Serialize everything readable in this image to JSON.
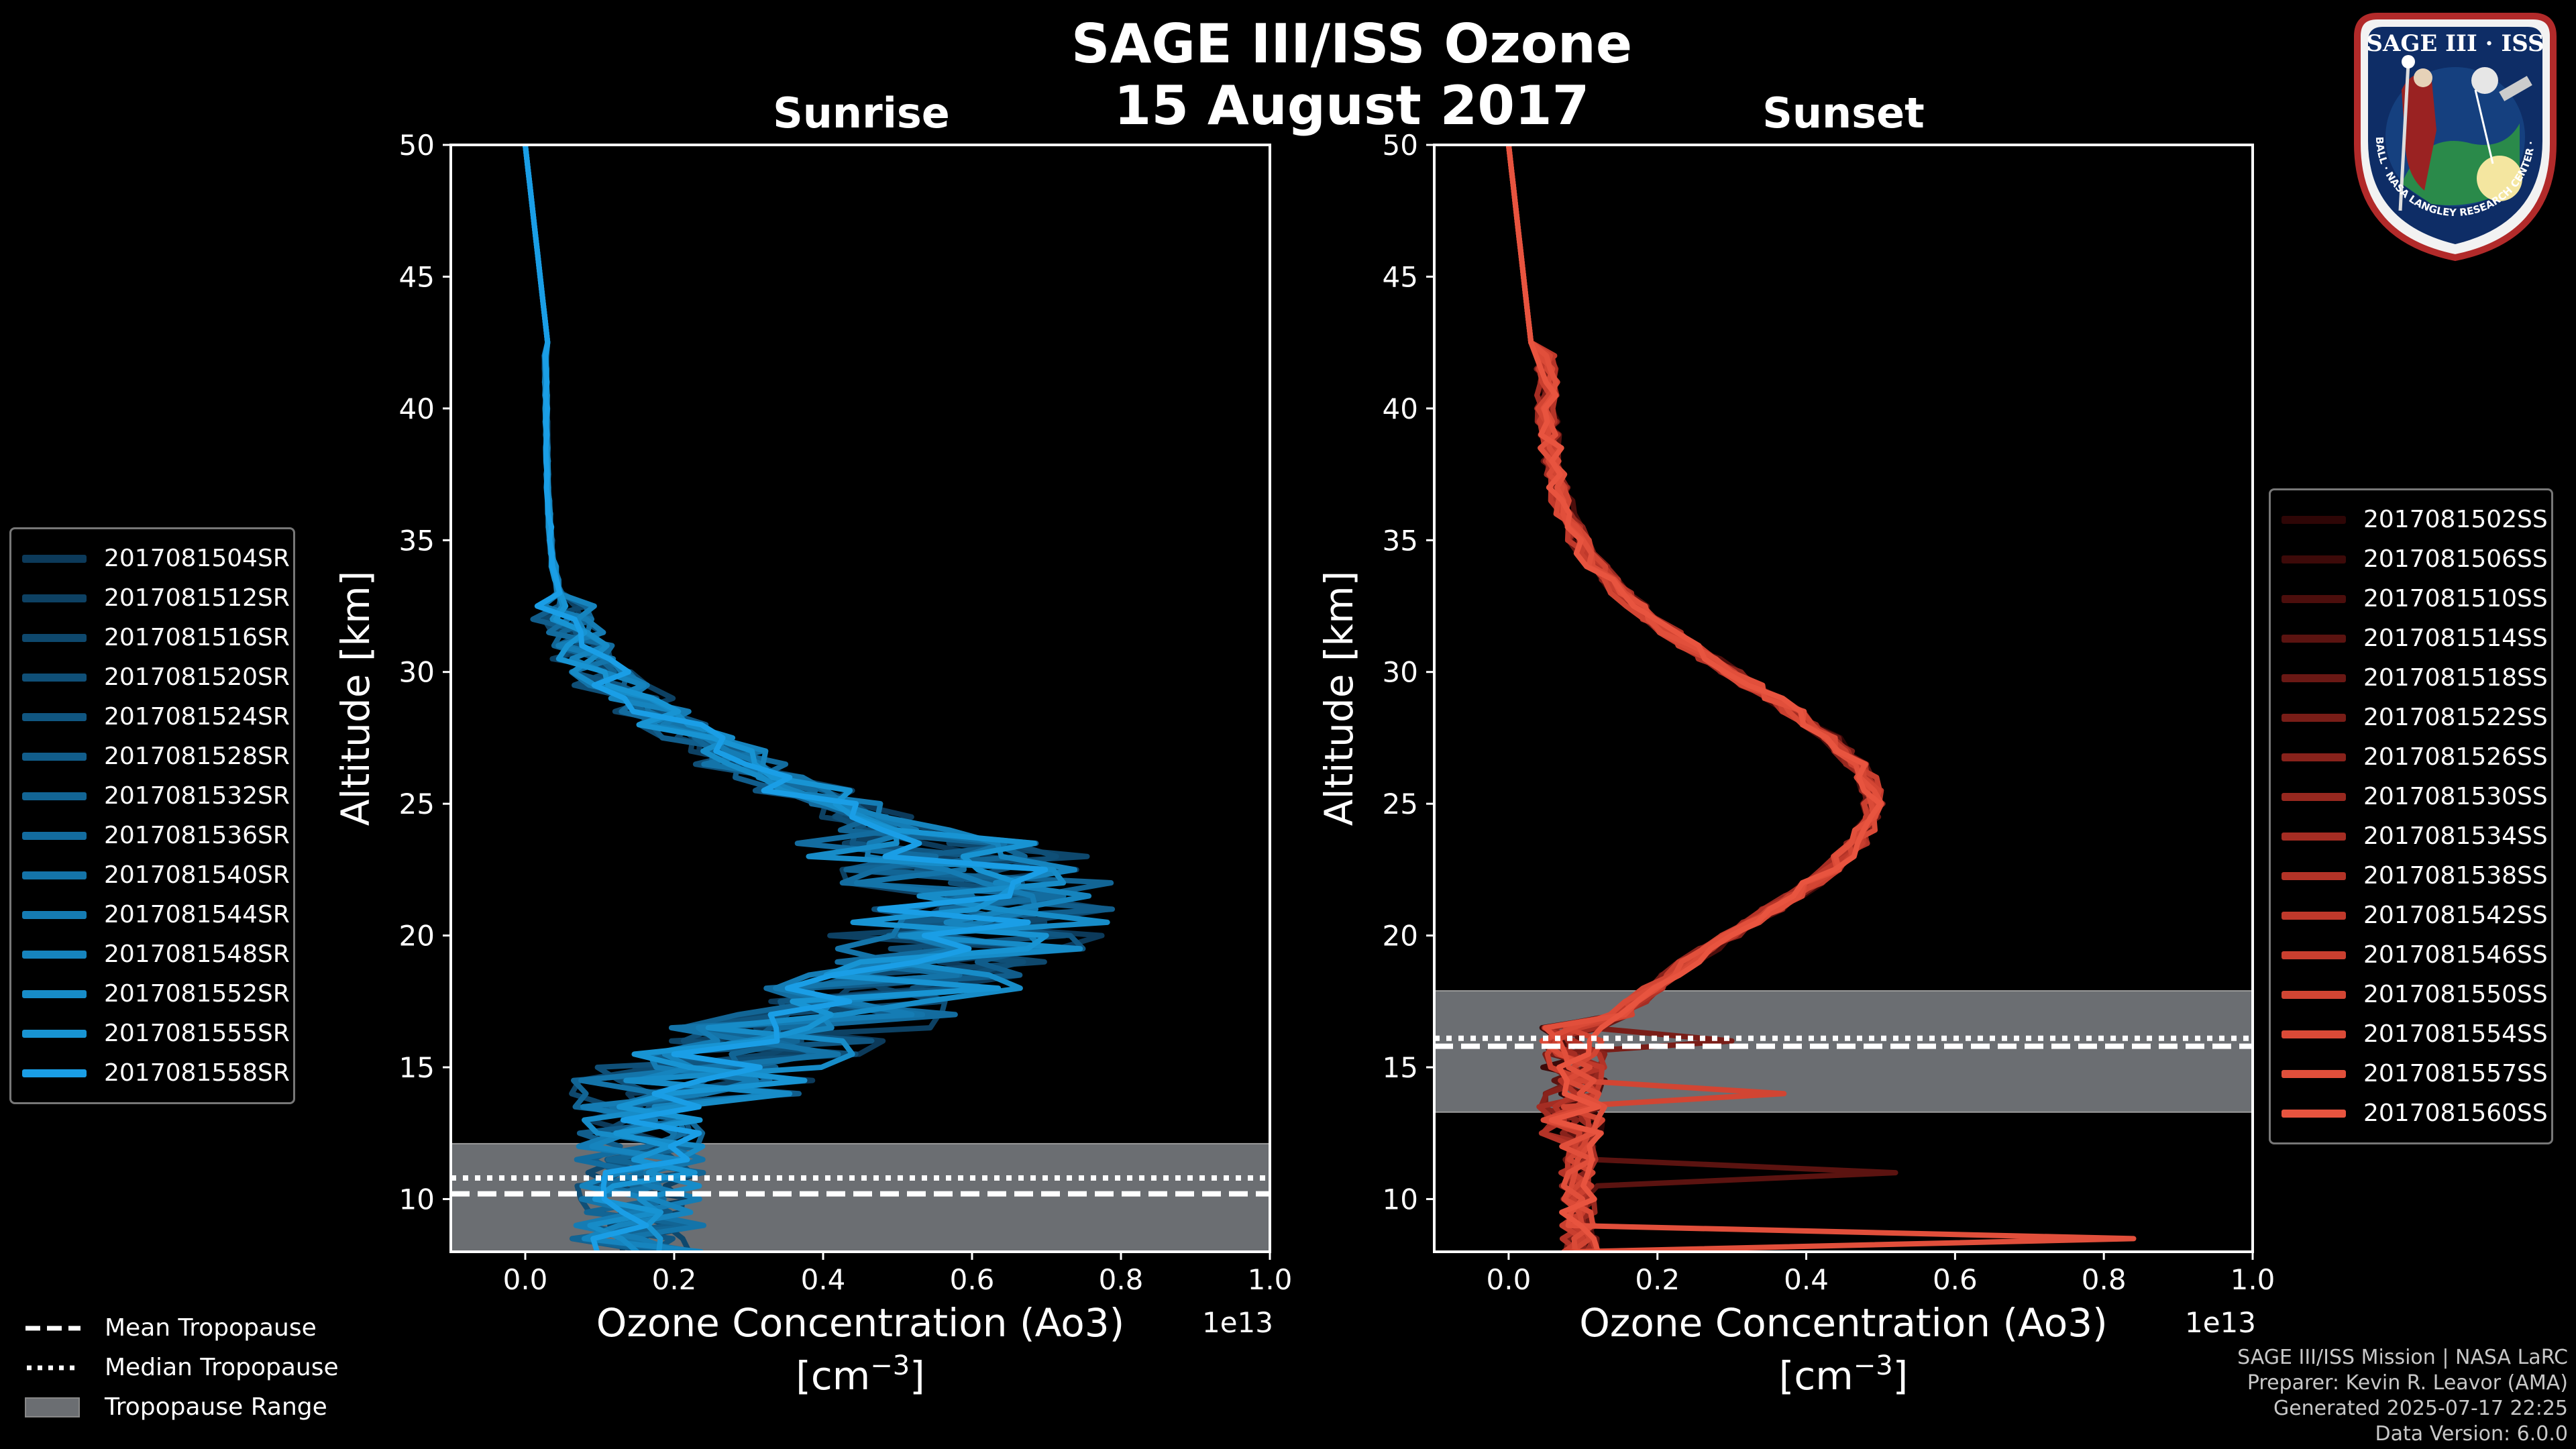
{
  "title_line1": "SAGE III/ISS Ozone",
  "title_line2": "15 August 2017",
  "colors": {
    "sunrise_accent": "#1a9ee6",
    "sunset_accent": "#e8543f",
    "tropopause_band": "#6b6e72",
    "background": "#000000"
  },
  "chart_data": [
    {
      "type": "line",
      "title": "Sunrise",
      "xlabel": "Ozone Concentration (Ao3)",
      "xunits": "[cm",
      "xunits_exp": "−3",
      "xunits_close": "]",
      "ylabel": "Altitude [km]",
      "x_offset_label": "1e13",
      "xlim": [
        -0.1,
        1.0
      ],
      "ylim": [
        8,
        50
      ],
      "xticks": [
        0.0,
        0.2,
        0.4,
        0.6,
        0.8,
        1.0
      ],
      "xtick_labels": [
        "0.0",
        "0.2",
        "0.4",
        "0.6",
        "0.8",
        "1.0"
      ],
      "yticks": [
        10,
        15,
        20,
        25,
        30,
        35,
        40,
        45,
        50
      ],
      "ytick_labels": [
        "10",
        "15",
        "20",
        "25",
        "30",
        "35",
        "40",
        "45",
        "50"
      ],
      "tropopause": {
        "mean": 10.2,
        "median": 10.8,
        "range": [
          8,
          12.1
        ]
      },
      "series": [
        {
          "name": "2017081504SR",
          "color": "#0c3a5a"
        },
        {
          "name": "2017081512SR",
          "color": "#0d4163"
        },
        {
          "name": "2017081516SR",
          "color": "#0e486d"
        },
        {
          "name": "2017081520SR",
          "color": "#0f4f77"
        },
        {
          "name": "2017081524SR",
          "color": "#105681"
        },
        {
          "name": "2017081528SR",
          "color": "#115d8b"
        },
        {
          "name": "2017081532SR",
          "color": "#126595"
        },
        {
          "name": "2017081536SR",
          "color": "#136c9f"
        },
        {
          "name": "2017081540SR",
          "color": "#1474a9"
        },
        {
          "name": "2017081544SR",
          "color": "#157cb4"
        },
        {
          "name": "2017081548SR",
          "color": "#1684be"
        },
        {
          "name": "2017081552SR",
          "color": "#178cc8"
        },
        {
          "name": "2017081555SR",
          "color": "#1894d3"
        },
        {
          "name": "2017081558SR",
          "color": "#1a9ee6"
        }
      ]
    },
    {
      "type": "line",
      "title": "Sunset",
      "xlabel": "Ozone Concentration (Ao3)",
      "xunits": "[cm",
      "xunits_exp": "−3",
      "xunits_close": "]",
      "ylabel": "Altitude [km]",
      "x_offset_label": "1e13",
      "xlim": [
        -0.1,
        1.0
      ],
      "ylim": [
        8,
        50
      ],
      "xticks": [
        0.0,
        0.2,
        0.4,
        0.6,
        0.8,
        1.0
      ],
      "xtick_labels": [
        "0.0",
        "0.2",
        "0.4",
        "0.6",
        "0.8",
        "1.0"
      ],
      "yticks": [
        10,
        15,
        20,
        25,
        30,
        35,
        40,
        45,
        50
      ],
      "ytick_labels": [
        "10",
        "15",
        "20",
        "25",
        "30",
        "35",
        "40",
        "45",
        "50"
      ],
      "tropopause": {
        "mean": 15.8,
        "median": 16.1,
        "range": [
          13.3,
          17.9
        ]
      },
      "series": [
        {
          "name": "2017081502SS",
          "color": "#2e0606"
        },
        {
          "name": "2017081506SS",
          "color": "#3d0a09"
        },
        {
          "name": "2017081510SS",
          "color": "#4c0e0c"
        },
        {
          "name": "2017081514SS",
          "color": "#5b1310"
        },
        {
          "name": "2017081518SS",
          "color": "#6a1814"
        },
        {
          "name": "2017081522SS",
          "color": "#791d17"
        },
        {
          "name": "2017081526SS",
          "color": "#88221b"
        },
        {
          "name": "2017081530SS",
          "color": "#97281f"
        },
        {
          "name": "2017081534SS",
          "color": "#a52d23"
        },
        {
          "name": "2017081538SS",
          "color": "#b33327"
        },
        {
          "name": "2017081542SS",
          "color": "#c0392b"
        },
        {
          "name": "2017081546SS",
          "color": "#c93f2f"
        },
        {
          "name": "2017081550SS",
          "color": "#d24533"
        },
        {
          "name": "2017081554SS",
          "color": "#da4a37"
        },
        {
          "name": "2017081557SS",
          "color": "#e14f3b"
        },
        {
          "name": "2017081560SS",
          "color": "#e8543f"
        }
      ]
    }
  ],
  "tropopause_legend": [
    {
      "label": "Mean Tropopause",
      "style": "dashed"
    },
    {
      "label": "Median Tropopause",
      "style": "dotted"
    },
    {
      "label": "Tropopause Range",
      "style": "band"
    }
  ],
  "credits": [
    "SAGE III/ISS Mission | NASA LaRC",
    "Preparer: Kevin R. Leavor (AMA)",
    "Generated 2025-07-17 22:25",
    "Data Version: 6.0.0"
  ],
  "logo": {
    "title": "SAGE III · ISS",
    "ring_text": "BALL · NASA LANGLEY RESEARCH CENTER · TAS-I · ESA"
  }
}
